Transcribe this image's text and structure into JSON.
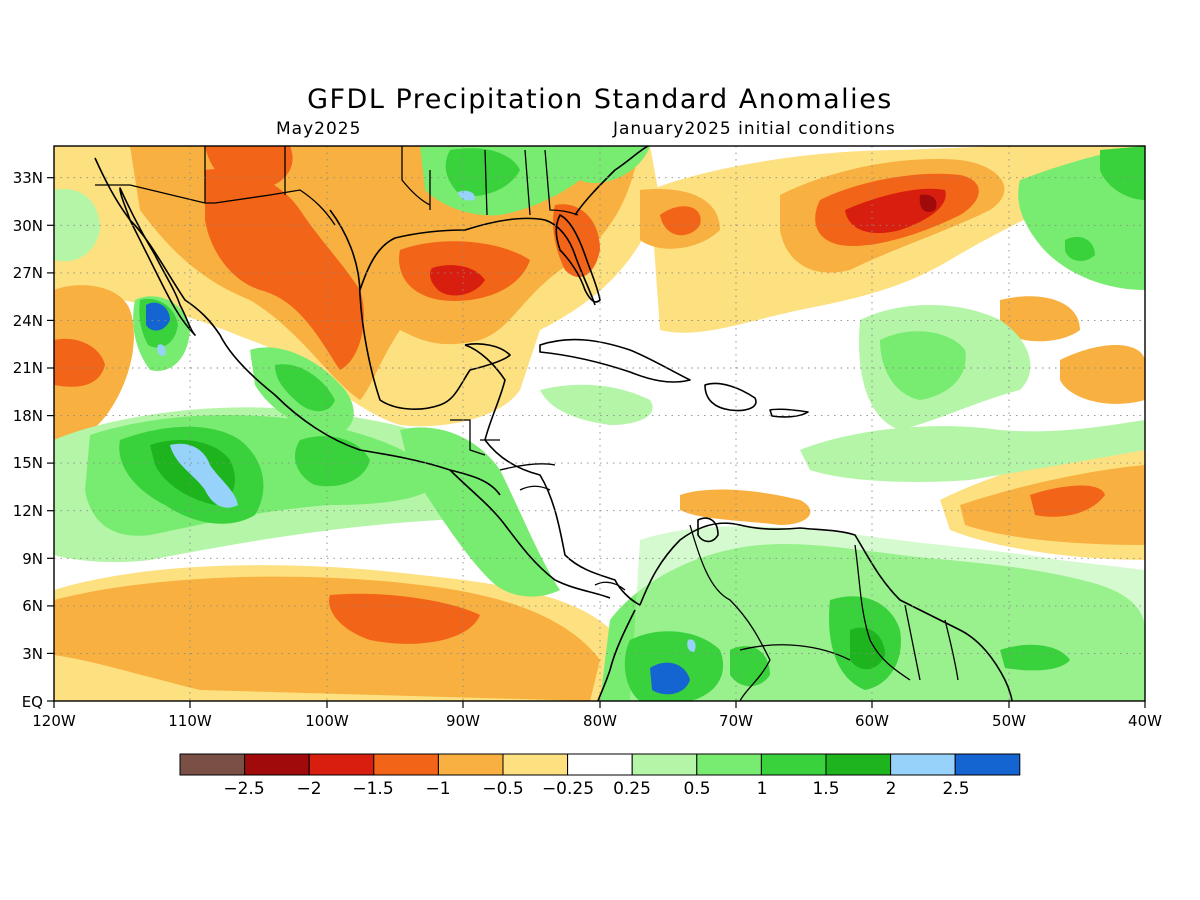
{
  "title": "GFDL Precipitation Standard Anomalies",
  "subtitle_left": "May2025",
  "subtitle_right": "January2025 initial conditions",
  "map": {
    "lon_range": [
      -120,
      -40
    ],
    "lat_range": [
      0,
      35
    ],
    "lon_ticks": [
      "120W",
      "110W",
      "100W",
      "90W",
      "80W",
      "70W",
      "60W",
      "50W",
      "40W"
    ],
    "lat_ticks": [
      "EQ",
      "3N",
      "6N",
      "9N",
      "12N",
      "15N",
      "18N",
      "21N",
      "24N",
      "27N",
      "30N",
      "33N"
    ],
    "grid": "dotted",
    "ocean_background": "white"
  },
  "colorbar": {
    "colors": [
      "#7a4f45",
      "#a00a0a",
      "#d81e0e",
      "#f26418",
      "#f8b040",
      "#fde080",
      "#ffffff",
      "#b4f5a8",
      "#78ec70",
      "#3ad23c",
      "#1eb41e",
      "#96d2fa",
      "#1464d2"
    ],
    "labels": [
      "−2.5",
      "−2",
      "−1.5",
      "−1",
      "−0.5",
      "−0.25",
      "0.25",
      "0.5",
      "1",
      "1.5",
      "2",
      "2.5"
    ]
  },
  "chart_data": {
    "type": "heatmap",
    "title": "GFDL Precipitation Standard Anomalies",
    "subtitle": "May2025 — January2025 initial conditions",
    "x_range": [
      -120,
      -40
    ],
    "y_range": [
      0,
      35
    ],
    "levels": [
      -2.5,
      -2,
      -1.5,
      -1,
      -0.5,
      -0.25,
      0.25,
      0.5,
      1,
      1.5,
      2,
      2.5
    ],
    "regions": [
      {
        "lon": -75,
        "lat": 1.5,
        "value": 2.6
      },
      {
        "lon": -111.8,
        "lat": 24.3,
        "value": 2.6
      },
      {
        "lon": -109,
        "lat": 14.5,
        "value": 2.2
      },
      {
        "lon": -92,
        "lat": 26,
        "value": -2.0
      },
      {
        "lon": -60,
        "lat": 30,
        "value": -1.8
      },
      {
        "lon": -98,
        "lat": 24,
        "value": -1.6
      },
      {
        "lon": -47,
        "lat": 12,
        "value": -1.3
      },
      {
        "lon": -95,
        "lat": 5,
        "value": -1.2
      },
      {
        "lon": -64,
        "lat": 4,
        "value": 1.7
      },
      {
        "lon": -108,
        "lat": 14,
        "value": 1.6
      }
    ]
  }
}
